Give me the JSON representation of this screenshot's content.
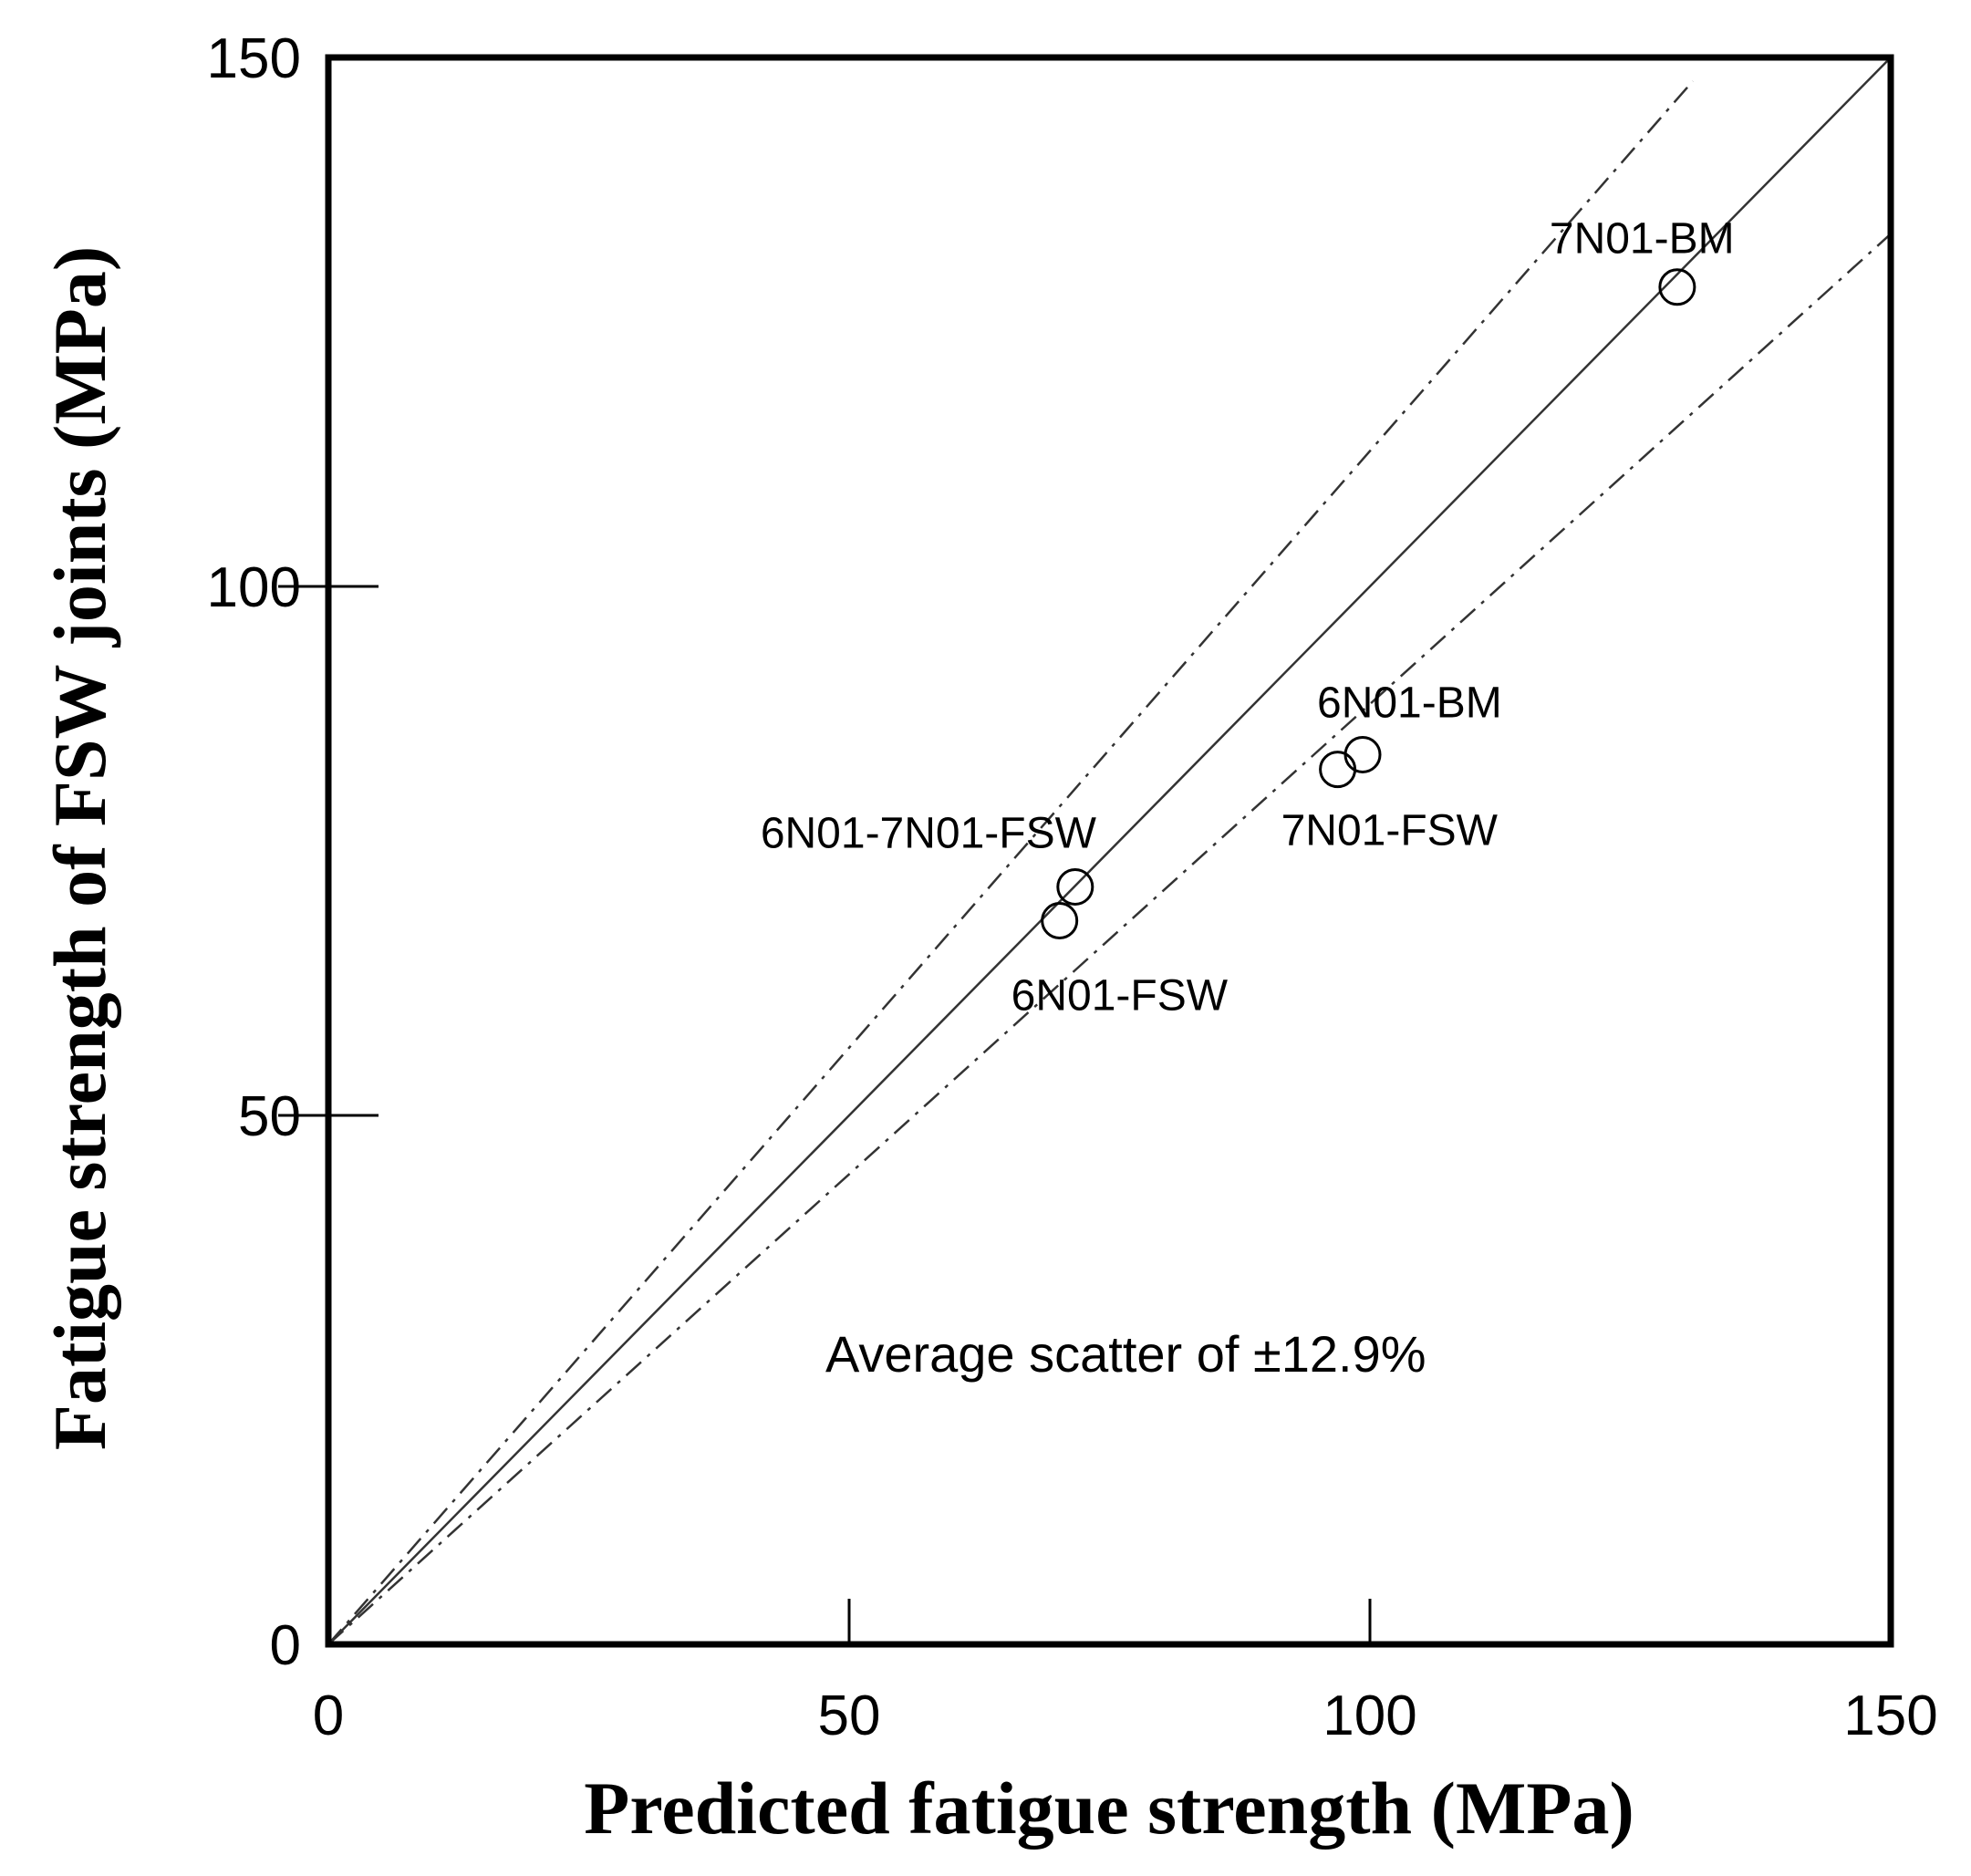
{
  "chart_data": {
    "type": "scatter",
    "title": "",
    "xlabel": "Predicted fatigue strength (MPa)",
    "ylabel": "Fatigue strength of FSW joints (MPa)",
    "xlim": [
      0,
      150
    ],
    "ylim": [
      0,
      150
    ],
    "xticks": [
      "0",
      "50",
      "100",
      "150"
    ],
    "yticks": [
      "0",
      "50",
      "100",
      "150"
    ],
    "grid": false,
    "points": [
      {
        "label": "7N01-BM",
        "x": 129.5,
        "y": 128.3
      },
      {
        "label": "6N01-BM",
        "x": 99.3,
        "y": 84.1
      },
      {
        "label": "7N01-FSW",
        "x": 96.9,
        "y": 82.7
      },
      {
        "label": "6N01-7N01-FSW",
        "x": 71.7,
        "y": 71.6
      },
      {
        "label": "6N01-FSW",
        "x": 70.2,
        "y": 68.4
      }
    ],
    "reference_lines": [
      {
        "name": "y = x",
        "style": "solid",
        "slope": 1.0,
        "x_end": 150
      },
      {
        "name": "upper scatter bound",
        "style": "dash-dot",
        "slope": 1.128,
        "x_end": 131
      },
      {
        "name": "lower scatter bound",
        "style": "dash-dot",
        "slope": 0.8888,
        "x_end": 150
      }
    ],
    "annotation": "Average scatter of ±12.9%"
  }
}
